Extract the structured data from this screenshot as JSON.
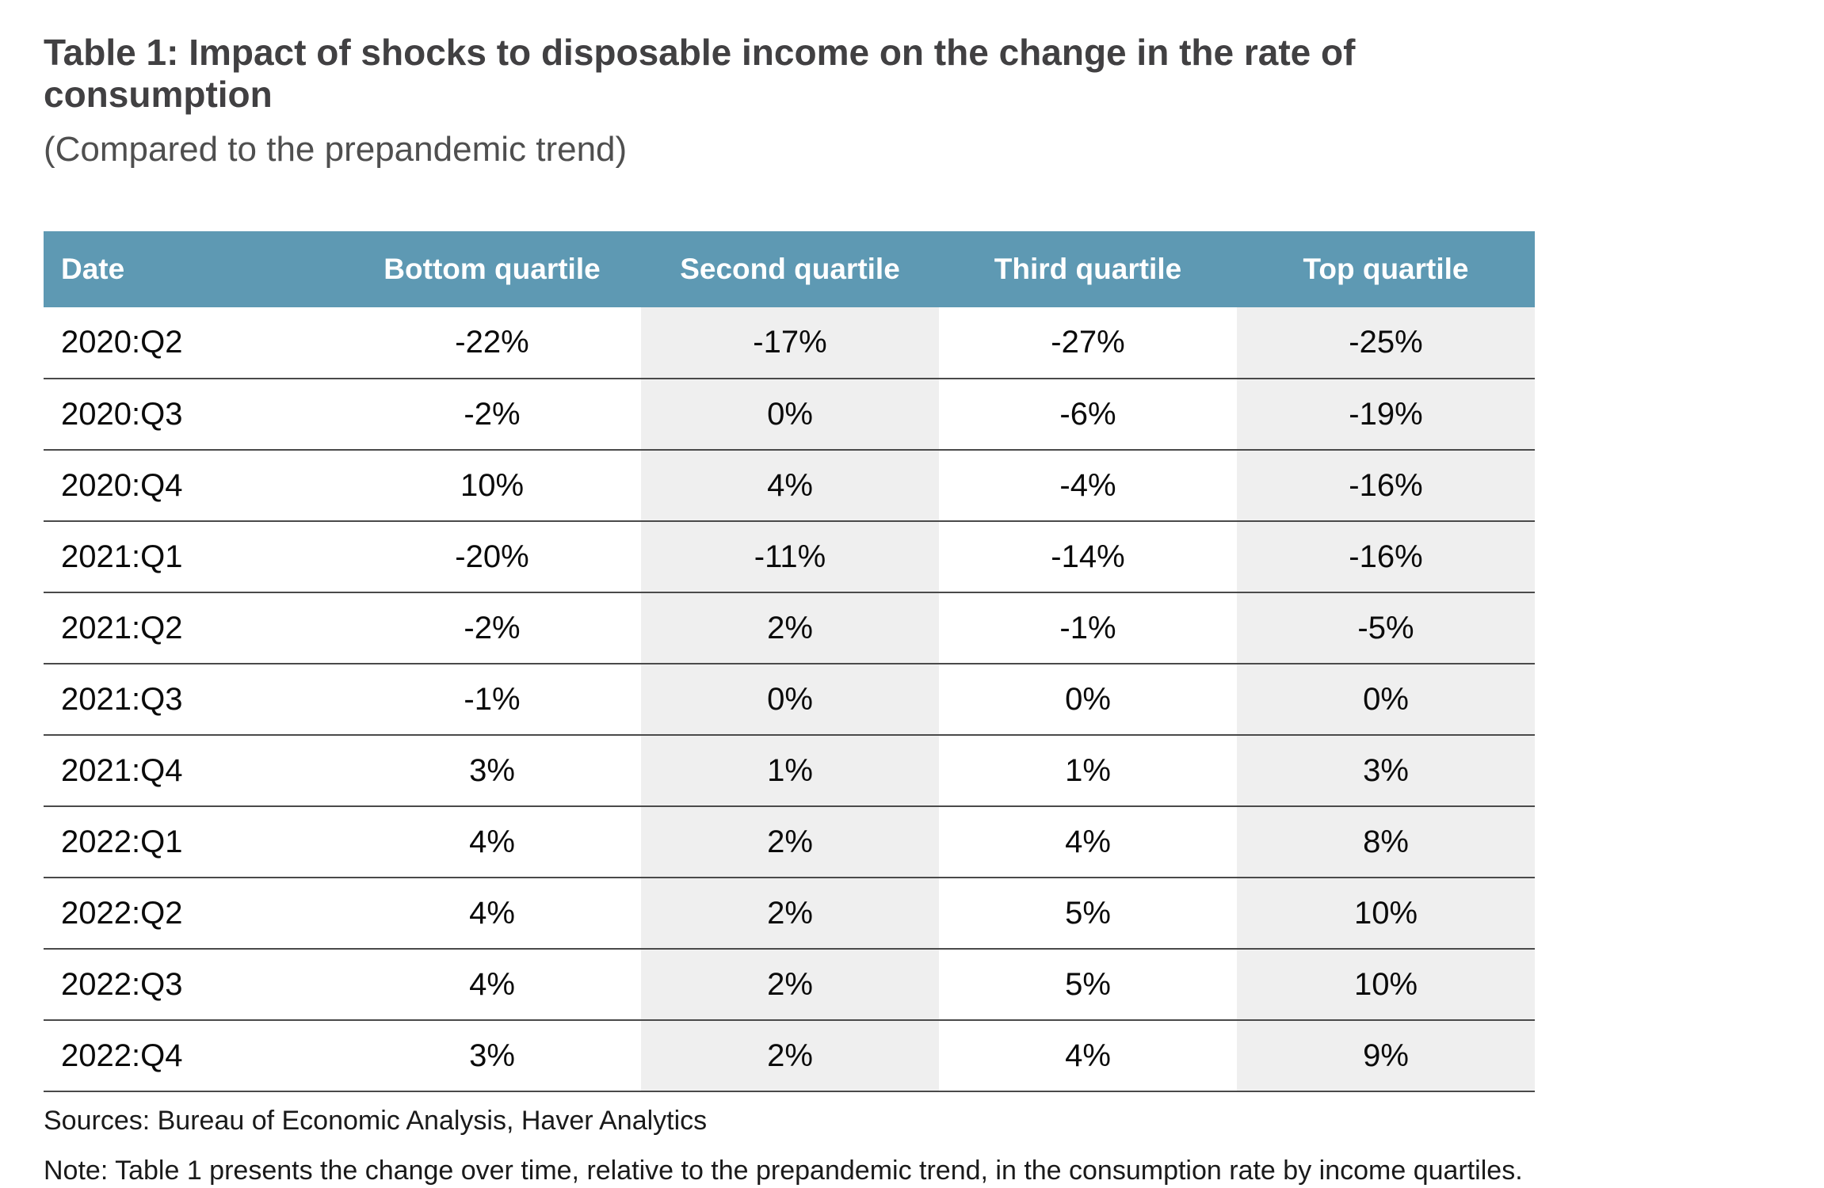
{
  "title": {
    "label": "Table 1: Impact of shocks to disposable income on the change in the rate of consumption",
    "subtitle": "(Compared to the prepandemic trend)"
  },
  "table": {
    "header_bg": "#5e99b3",
    "header_text_color": "#ffffff",
    "shaded_column_bg": "#efefef",
    "shaded_column_indexes": [
      1,
      3
    ],
    "columns": [
      "Date",
      "Bottom quartile",
      "Second quartile",
      "Third quartile",
      "Top quartile"
    ],
    "rows": [
      {
        "date": "2020:Q2",
        "values": [
          "-22%",
          "-17%",
          "-27%",
          "-25%"
        ]
      },
      {
        "date": "2020:Q3",
        "values": [
          "-2%",
          "0%",
          "-6%",
          "-19%"
        ]
      },
      {
        "date": "2020:Q4",
        "values": [
          "10%",
          "4%",
          "-4%",
          "-16%"
        ]
      },
      {
        "date": "2021:Q1",
        "values": [
          "-20%",
          "-11%",
          "-14%",
          "-16%"
        ]
      },
      {
        "date": "2021:Q2",
        "values": [
          "-2%",
          "2%",
          "-1%",
          "-5%"
        ]
      },
      {
        "date": "2021:Q3",
        "values": [
          "-1%",
          "0%",
          "0%",
          "0%"
        ]
      },
      {
        "date": "2021:Q4",
        "values": [
          "3%",
          "1%",
          "1%",
          "3%"
        ]
      },
      {
        "date": "2022:Q1",
        "values": [
          "4%",
          "2%",
          "4%",
          "8%"
        ]
      },
      {
        "date": "2022:Q2",
        "values": [
          "4%",
          "2%",
          "5%",
          "10%"
        ]
      },
      {
        "date": "2022:Q3",
        "values": [
          "4%",
          "2%",
          "5%",
          "10%"
        ]
      },
      {
        "date": "2022:Q4",
        "values": [
          "3%",
          "2%",
          "4%",
          "9%"
        ]
      }
    ]
  },
  "footer": {
    "sources": "Sources: Bureau of Economic Analysis, Haver Analytics",
    "note": "Note: Table 1 presents the change over time, relative to the prepandemic trend, in the consumption rate by income quartiles."
  },
  "chart_data": {
    "type": "table",
    "title": "Table 1: Impact of shocks to disposable income on the change in the rate of consumption",
    "subtitle": "(Compared to the prepandemic trend)",
    "categories": [
      "2020:Q2",
      "2020:Q3",
      "2020:Q4",
      "2021:Q1",
      "2021:Q2",
      "2021:Q3",
      "2021:Q4",
      "2022:Q1",
      "2022:Q2",
      "2022:Q3",
      "2022:Q4"
    ],
    "series": [
      {
        "name": "Bottom quartile",
        "values": [
          -22,
          -2,
          10,
          -20,
          -2,
          -1,
          3,
          4,
          4,
          4,
          3
        ]
      },
      {
        "name": "Second quartile",
        "values": [
          -17,
          0,
          4,
          -11,
          2,
          0,
          1,
          2,
          2,
          2,
          2
        ]
      },
      {
        "name": "Third quartile",
        "values": [
          -27,
          -6,
          -4,
          -14,
          -1,
          0,
          1,
          4,
          5,
          5,
          4
        ]
      },
      {
        "name": "Top quartile",
        "values": [
          -25,
          -19,
          -16,
          -16,
          -5,
          0,
          3,
          8,
          10,
          10,
          9
        ]
      }
    ],
    "unit": "%"
  }
}
